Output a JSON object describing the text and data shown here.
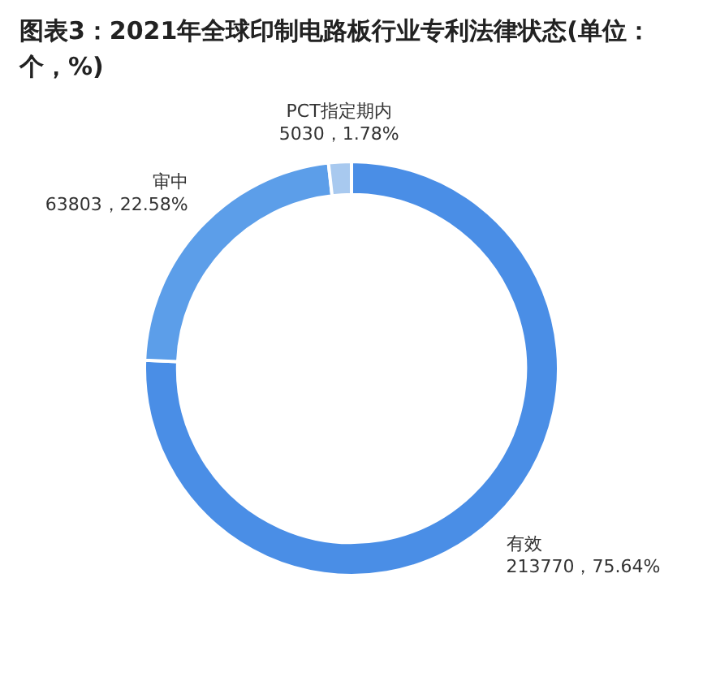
{
  "chart_data": {
    "type": "donut",
    "title": "图表3：2021年全球印制电路板行业专利法律状态(单位：个，%)",
    "categories": [
      "有效",
      "审中",
      "PCT指定期内"
    ],
    "values": [
      75.64,
      22.58,
      1.78
    ],
    "value_labels": [
      "213770，75.64%",
      "63803，22.58%",
      "5030，1.78%"
    ],
    "colors": [
      "#4a8ee6",
      "#5c9ee9",
      "#a8c9ef"
    ],
    "legend": false
  }
}
